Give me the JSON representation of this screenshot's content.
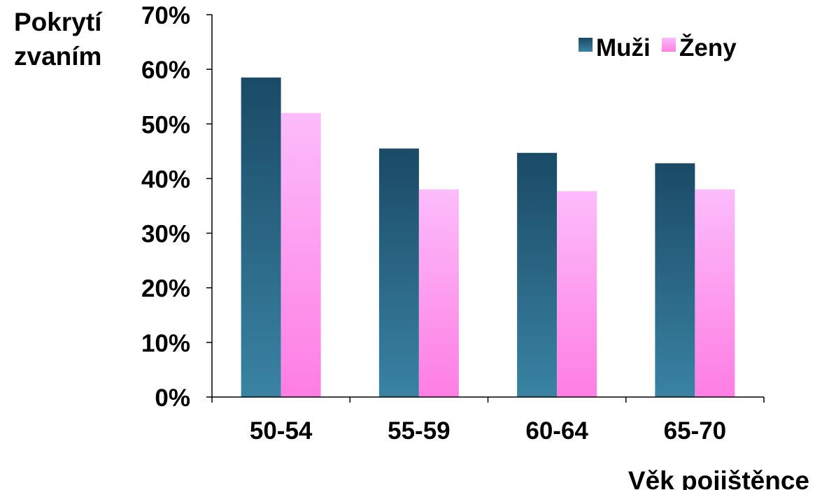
{
  "chart_data": {
    "type": "bar",
    "ylabel": [
      "Pokrytí",
      "zvaním"
    ],
    "xlabel": "Věk pojištěnce",
    "categories": [
      "50-54",
      "55-59",
      "60-64",
      "65-70"
    ],
    "series": [
      {
        "name": "Muži",
        "values": [
          58.5,
          45.5,
          44.7,
          42.8
        ]
      },
      {
        "name": "Ženy",
        "values": [
          52.0,
          38.0,
          37.7,
          38.0
        ]
      }
    ],
    "ylim": [
      0,
      70
    ],
    "yticks": [
      "0%",
      "10%",
      "20%",
      "30%",
      "40%",
      "50%",
      "60%",
      "70%"
    ],
    "legend_position": "top-right",
    "grid": false
  },
  "colors": {
    "muzi_top": "#1a4a66",
    "muzi_bottom": "#3a83a3",
    "zeny_top": "#fcbcfb",
    "zeny_bottom": "#fe7ee3"
  }
}
